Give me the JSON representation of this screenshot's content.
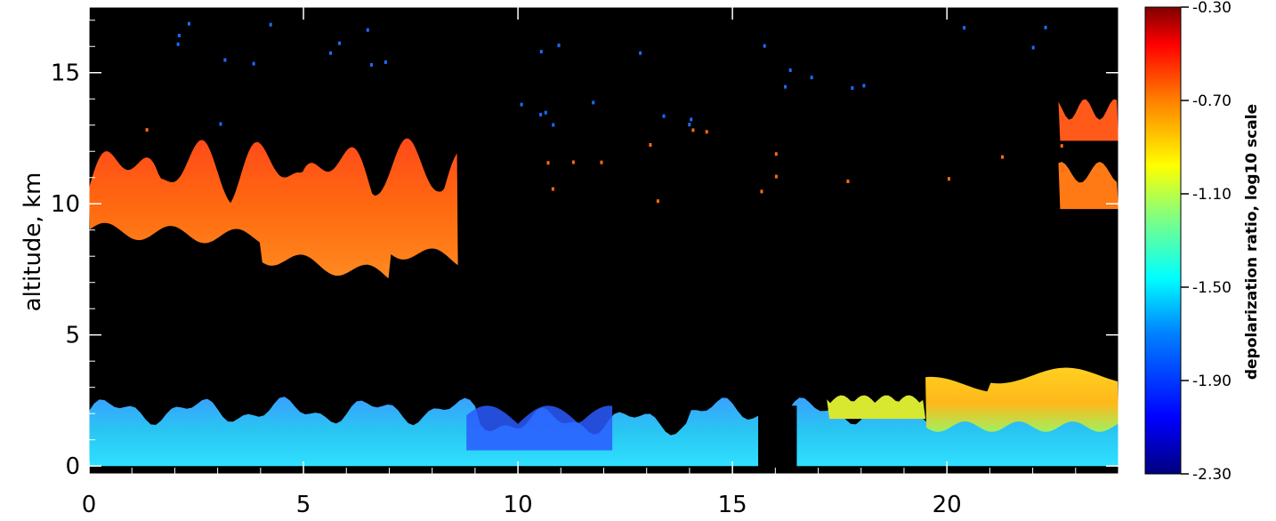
{
  "chart_data": {
    "type": "heatmap",
    "title": "",
    "xlabel": "",
    "ylabel": "altitude, km",
    "xlim": [
      0,
      24
    ],
    "ylim": [
      -0.3,
      17.5
    ],
    "x_ticks": [
      "0",
      "5",
      "10",
      "15",
      "20"
    ],
    "y_ticks": [
      "0",
      "5",
      "10",
      "15"
    ],
    "background_color": "#000000",
    "colorbar": {
      "label": "depolarization ratio, log10 scale",
      "scale": "log10",
      "range": [
        -2.3,
        -0.3
      ],
      "tick_labels": [
        "-0.30",
        "-0.70",
        "-1.10",
        "-1.50",
        "-1.90",
        "-2.30"
      ],
      "colormap": [
        "#00007f",
        "#0000ff",
        "#0080ff",
        "#00ffff",
        "#80ff80",
        "#ffff00",
        "#ff8000",
        "#ff0000",
        "#7f0000"
      ]
    },
    "features": [
      {
        "name": "upper cloud layer",
        "x_range": [
          0.0,
          8.6
        ],
        "altitude_range": [
          7.5,
          12.8
        ],
        "value": -0.75
      },
      {
        "name": "upper cloud patches",
        "x_range": [
          22.6,
          24.0
        ],
        "altitude_range": [
          9.5,
          14.0
        ],
        "value": -0.75
      },
      {
        "name": "boundary layer",
        "x_range": [
          0.0,
          24.0
        ],
        "altitude_range": [
          0.0,
          3.5
        ],
        "value": -1.55
      },
      {
        "name": "elevated boundary layer",
        "x_range": [
          19.5,
          24.0
        ],
        "altitude_range": [
          1.8,
          3.6
        ],
        "value": -1.0
      },
      {
        "name": "no data gap",
        "x_range": [
          15.6,
          16.5
        ],
        "altitude_range": [
          0.0,
          2.3
        ]
      }
    ]
  }
}
